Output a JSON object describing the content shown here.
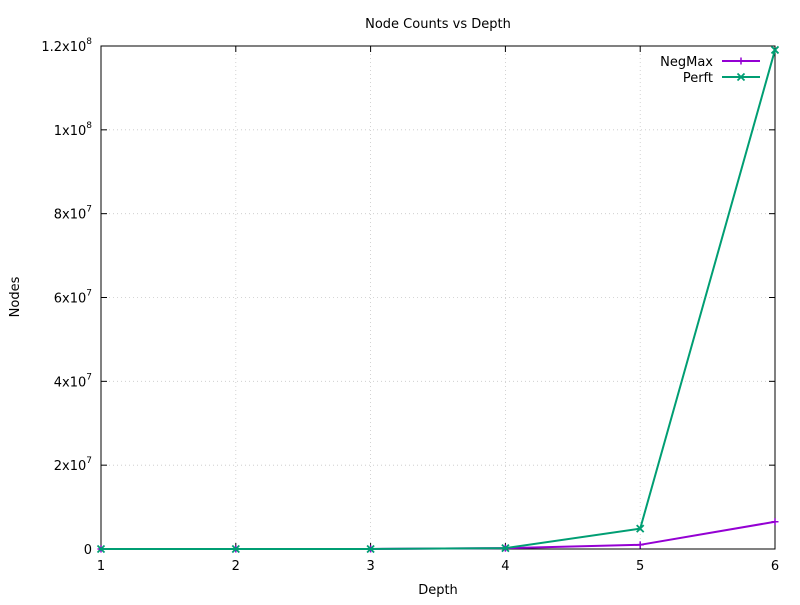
{
  "chart_data": {
    "type": "line",
    "title": "Node Counts vs Depth",
    "xlabel": "Depth",
    "ylabel": "Nodes",
    "x": [
      1,
      2,
      3,
      4,
      5,
      6
    ],
    "xlim": [
      1,
      6
    ],
    "ylim": [
      0,
      120000000
    ],
    "xticks": [
      1,
      2,
      3,
      4,
      5,
      6
    ],
    "yticks": [
      {
        "value": 0,
        "base": "0",
        "exp": ""
      },
      {
        "value": 20000000,
        "base": "2x10",
        "exp": "7"
      },
      {
        "value": 40000000,
        "base": "4x10",
        "exp": "7"
      },
      {
        "value": 60000000,
        "base": "6x10",
        "exp": "7"
      },
      {
        "value": 80000000,
        "base": "8x10",
        "exp": "7"
      },
      {
        "value": 100000000,
        "base": "1x10",
        "exp": "8"
      },
      {
        "value": 120000000,
        "base": "1.2x10",
        "exp": "8"
      }
    ],
    "grid": true,
    "legend_position": "top-right",
    "series": [
      {
        "name": "NegMax",
        "color": "#9400d3",
        "marker": "plus",
        "values": [
          20,
          400,
          8900,
          197000,
          1000000,
          6500000
        ]
      },
      {
        "name": "Perft",
        "color": "#009e73",
        "marker": "cross",
        "values": [
          20,
          400,
          8902,
          197281,
          4865609,
          119060324
        ]
      }
    ]
  }
}
